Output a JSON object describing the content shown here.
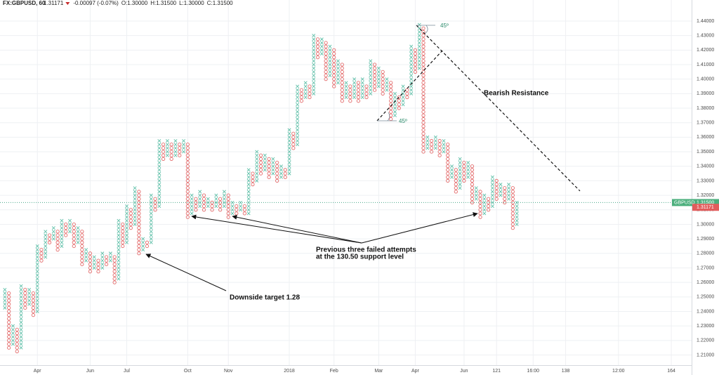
{
  "chart_data": {
    "type": "point-and-figure",
    "title": "FX:GBPUSD, 60",
    "header_values": [
      "1.31171",
      "-0.00097 (-0.07%)",
      "O:1.30000",
      "H:1.31500",
      "L:1.30000",
      "C:1.31500"
    ],
    "box_size": 0.0025,
    "x_color": "#5fbfa8",
    "o_color": "#e36b6b",
    "grid": true,
    "xlim": [
      -0.5,
      169
    ],
    "ylim": [
      1.203,
      1.4545
    ],
    "xticks": [
      {
        "value": 8,
        "label": "Apr"
      },
      {
        "value": 21,
        "label": "Jun"
      },
      {
        "value": 30,
        "label": "Jul"
      },
      {
        "value": 45,
        "label": "Oct"
      },
      {
        "value": 55,
        "label": "Nov"
      },
      {
        "value": 70,
        "label": "2018"
      },
      {
        "value": 81,
        "label": "Feb"
      },
      {
        "value": 92,
        "label": "Mar"
      },
      {
        "value": 101,
        "label": "Apr"
      },
      {
        "value": 113,
        "label": "Jun"
      },
      121,
      {
        "value": 130,
        "label": "16:00"
      },
      138,
      {
        "value": 151,
        "label": "12:00"
      },
      164
    ],
    "yticks": [
      {
        "value": 1.21,
        "label": "1.21000"
      },
      {
        "value": 1.22,
        "label": "1.22000"
      },
      {
        "value": 1.23,
        "label": "1.23000"
      },
      {
        "value": 1.24,
        "label": "1.24000"
      },
      {
        "value": 1.25,
        "label": "1.25000"
      },
      {
        "value": 1.26,
        "label": "1.26000"
      },
      {
        "value": 1.27,
        "label": "1.27000"
      },
      {
        "value": 1.28,
        "label": "1.28000"
      },
      {
        "value": 1.29,
        "label": "1.29000"
      },
      {
        "value": 1.3,
        "label": "1.30000"
      },
      {
        "value": 1.31,
        "label": "1.31000"
      },
      {
        "value": 1.32,
        "label": "1.32000"
      },
      {
        "value": 1.33,
        "label": "1.33000"
      },
      {
        "value": 1.34,
        "label": "1.34000"
      },
      {
        "value": 1.35,
        "label": "1.35000"
      },
      {
        "value": 1.36,
        "label": "1.36000"
      },
      {
        "value": 1.37,
        "label": "1.37000"
      },
      {
        "value": 1.38,
        "label": "1.38000"
      },
      {
        "value": 1.39,
        "label": "1.39000"
      },
      {
        "value": 1.4,
        "label": "1.40000"
      },
      {
        "value": 1.41,
        "label": "1.41000"
      },
      {
        "value": 1.42,
        "label": "1.42000"
      },
      {
        "value": 1.43,
        "label": "1.43000"
      },
      {
        "value": 1.44,
        "label": "1.44000"
      }
    ],
    "last_price": {
      "symbol": "GBPUSD",
      "value": 1.315,
      "label": "1.31500"
    },
    "close_price": {
      "value": 1.31171,
      "label": "1.31171"
    },
    "annotations": [
      "Bearish Resistance",
      "Previous three failed attempts",
      "at the 130.50 support level",
      "Downside target 1.28",
      "45º",
      "45º"
    ],
    "columns": [
      {
        "box": "X",
        "low": 1.2425,
        "high": 1.255
      },
      {
        "box": "O",
        "low": 1.215,
        "high": 1.2525
      },
      {
        "box": "X",
        "low": 1.2175,
        "high": 1.23
      },
      {
        "box": "O",
        "low": 1.2125,
        "high": 1.2275
      },
      {
        "box": "X",
        "low": 1.215,
        "high": 1.2575
      },
      {
        "box": "O",
        "low": 1.2425,
        "high": 1.255
      },
      {
        "box": "X",
        "low": 1.245,
        "high": 1.255
      },
      {
        "box": "O",
        "low": 1.2375,
        "high": 1.2525
      },
      {
        "box": "X",
        "low": 1.24,
        "high": 1.285
      },
      {
        "box": "O",
        "low": 1.275,
        "high": 1.2825
      },
      {
        "box": "X",
        "low": 1.2775,
        "high": 1.295
      },
      {
        "box": "O",
        "low": 1.2875,
        "high": 1.2925
      },
      {
        "box": "X",
        "low": 1.29,
        "high": 1.2975
      },
      {
        "box": "O",
        "low": 1.2825,
        "high": 1.295
      },
      {
        "box": "X",
        "low": 1.285,
        "high": 1.3025
      },
      {
        "box": "O",
        "low": 1.2925,
        "high": 1.3
      },
      {
        "box": "X",
        "low": 1.295,
        "high": 1.3025
      },
      {
        "box": "O",
        "low": 1.285,
        "high": 1.3
      },
      {
        "box": "X",
        "low": 1.2875,
        "high": 1.2975
      },
      {
        "box": "O",
        "low": 1.2725,
        "high": 1.295
      },
      {
        "box": "X",
        "low": 1.275,
        "high": 1.2825
      },
      {
        "box": "O",
        "low": 1.2675,
        "high": 1.28
      },
      {
        "box": "X",
        "low": 1.27,
        "high": 1.2775
      },
      {
        "box": "O",
        "low": 1.2675,
        "high": 1.275
      },
      {
        "box": "X",
        "low": 1.27,
        "high": 1.28
      },
      {
        "box": "O",
        "low": 1.2725,
        "high": 1.2775
      },
      {
        "box": "X",
        "low": 1.275,
        "high": 1.28
      },
      {
        "box": "O",
        "low": 1.26,
        "high": 1.2775
      },
      {
        "box": "X",
        "low": 1.2625,
        "high": 1.3025
      },
      {
        "box": "O",
        "low": 1.285,
        "high": 1.3
      },
      {
        "box": "X",
        "low": 1.2875,
        "high": 1.3125
      },
      {
        "box": "O",
        "low": 1.2975,
        "high": 1.31
      },
      {
        "box": "X",
        "low": 1.3,
        "high": 1.325
      },
      {
        "box": "O",
        "low": 1.28,
        "high": 1.3225
      },
      {
        "box": "X",
        "low": 1.2825,
        "high": 1.29
      },
      {
        "box": "O",
        "low": 1.285,
        "high": 1.2875
      },
      {
        "box": "X",
        "low": 1.2875,
        "high": 1.32
      },
      {
        "box": "O",
        "low": 1.31,
        "high": 1.3175
      },
      {
        "box": "X",
        "low": 1.3125,
        "high": 1.3575
      },
      {
        "box": "O",
        "low": 1.345,
        "high": 1.355
      },
      {
        "box": "X",
        "low": 1.3475,
        "high": 1.3575
      },
      {
        "box": "O",
        "low": 1.345,
        "high": 1.355
      },
      {
        "box": "X",
        "low": 1.3475,
        "high": 1.3575
      },
      {
        "box": "O",
        "low": 1.3475,
        "high": 1.355
      },
      {
        "box": "X",
        "low": 1.35,
        "high": 1.3575
      },
      {
        "box": "O",
        "low": 1.305,
        "high": 1.355
      },
      {
        "box": "X",
        "low": 1.3075,
        "high": 1.32
      },
      {
        "box": "O",
        "low": 1.31,
        "high": 1.3175
      },
      {
        "box": "X",
        "low": 1.3125,
        "high": 1.3225
      },
      {
        "box": "O",
        "low": 1.31,
        "high": 1.32
      },
      {
        "box": "X",
        "low": 1.3125,
        "high": 1.3175
      },
      {
        "box": "O",
        "low": 1.31,
        "high": 1.315
      },
      {
        "box": "X",
        "low": 1.3125,
        "high": 1.32
      },
      {
        "box": "O",
        "low": 1.31,
        "high": 1.3175
      },
      {
        "box": "X",
        "low": 1.3125,
        "high": 1.3225
      },
      {
        "box": "O",
        "low": 1.305,
        "high": 1.32
      },
      {
        "box": "X",
        "low": 1.3075,
        "high": 1.315
      },
      {
        "box": "O",
        "low": 1.3075,
        "high": 1.3125
      },
      {
        "box": "X",
        "low": 1.31,
        "high": 1.315
      },
      {
        "box": "O",
        "low": 1.3075,
        "high": 1.3125
      },
      {
        "box": "X",
        "low": 1.3075,
        "high": 1.3375
      },
      {
        "box": "O",
        "low": 1.3275,
        "high": 1.335
      },
      {
        "box": "X",
        "low": 1.33,
        "high": 1.35
      },
      {
        "box": "O",
        "low": 1.335,
        "high": 1.3475
      },
      {
        "box": "X",
        "low": 1.3375,
        "high": 1.3475
      },
      {
        "box": "O",
        "low": 1.3325,
        "high": 1.345
      },
      {
        "box": "X",
        "low": 1.335,
        "high": 1.345
      },
      {
        "box": "O",
        "low": 1.33,
        "high": 1.3425
      },
      {
        "box": "X",
        "low": 1.3325,
        "high": 1.34
      },
      {
        "box": "O",
        "low": 1.3325,
        "high": 1.3375
      },
      {
        "box": "X",
        "low": 1.335,
        "high": 1.365
      },
      {
        "box": "O",
        "low": 1.3525,
        "high": 1.3625
      },
      {
        "box": "X",
        "low": 1.355,
        "high": 1.395
      },
      {
        "box": "O",
        "low": 1.385,
        "high": 1.3925
      },
      {
        "box": "X",
        "low": 1.3875,
        "high": 1.3975
      },
      {
        "box": "O",
        "low": 1.3875,
        "high": 1.395
      },
      {
        "box": "X",
        "low": 1.39,
        "high": 1.43
      },
      {
        "box": "O",
        "low": 1.415,
        "high": 1.4275
      },
      {
        "box": "X",
        "low": 1.4175,
        "high": 1.4275
      },
      {
        "box": "O",
        "low": 1.4,
        "high": 1.425
      },
      {
        "box": "X",
        "low": 1.4025,
        "high": 1.4225
      },
      {
        "box": "O",
        "low": 1.395,
        "high": 1.42
      },
      {
        "box": "X",
        "low": 1.3975,
        "high": 1.4125
      },
      {
        "box": "O",
        "low": 1.385,
        "high": 1.41
      },
      {
        "box": "X",
        "low": 1.3875,
        "high": 1.3975
      },
      {
        "box": "O",
        "low": 1.385,
        "high": 1.395
      },
      {
        "box": "X",
        "low": 1.3875,
        "high": 1.4
      },
      {
        "box": "O",
        "low": 1.385,
        "high": 1.3975
      },
      {
        "box": "X",
        "low": 1.3875,
        "high": 1.4
      },
      {
        "box": "O",
        "low": 1.3875,
        "high": 1.395
      },
      {
        "box": "X",
        "low": 1.39,
        "high": 1.4125
      },
      {
        "box": "O",
        "low": 1.3925,
        "high": 1.41
      },
      {
        "box": "X",
        "low": 1.395,
        "high": 1.4075
      },
      {
        "box": "O",
        "low": 1.39,
        "high": 1.405
      },
      {
        "box": "X",
        "low": 1.3925,
        "high": 1.4
      },
      {
        "box": "O",
        "low": 1.3725,
        "high": 1.3975
      },
      {
        "box": "X",
        "low": 1.375,
        "high": 1.39
      },
      {
        "box": "O",
        "low": 1.38,
        "high": 1.3875
      },
      {
        "box": "X",
        "low": 1.3825,
        "high": 1.395
      },
      {
        "box": "O",
        "low": 1.3875,
        "high": 1.3925
      },
      {
        "box": "X",
        "low": 1.39,
        "high": 1.4225
      },
      {
        "box": "O",
        "low": 1.405,
        "high": 1.42
      },
      {
        "box": "X",
        "low": 1.4075,
        "high": 1.4375
      },
      {
        "box": "O",
        "low": 1.35,
        "high": 1.435
      },
      {
        "box": "X",
        "low": 1.3525,
        "high": 1.36
      },
      {
        "box": "O",
        "low": 1.35,
        "high": 1.3575
      },
      {
        "box": "X",
        "low": 1.3525,
        "high": 1.36
      },
      {
        "box": "O",
        "low": 1.3475,
        "high": 1.3575
      },
      {
        "box": "X",
        "low": 1.35,
        "high": 1.3575
      },
      {
        "box": "O",
        "low": 1.33,
        "high": 1.355
      },
      {
        "box": "X",
        "low": 1.3325,
        "high": 1.34
      },
      {
        "box": "O",
        "low": 1.3225,
        "high": 1.3375
      },
      {
        "box": "X",
        "low": 1.325,
        "high": 1.345
      },
      {
        "box": "O",
        "low": 1.33,
        "high": 1.3425
      },
      {
        "box": "X",
        "low": 1.3325,
        "high": 1.3425
      },
      {
        "box": "O",
        "low": 1.315,
        "high": 1.34
      },
      {
        "box": "X",
        "low": 1.3175,
        "high": 1.325
      },
      {
        "box": "O",
        "low": 1.305,
        "high": 1.3225
      },
      {
        "box": "X",
        "low": 1.3075,
        "high": 1.32
      },
      {
        "box": "O",
        "low": 1.31,
        "high": 1.3175
      },
      {
        "box": "X",
        "low": 1.3125,
        "high": 1.3325
      },
      {
        "box": "O",
        "low": 1.3175,
        "high": 1.33
      },
      {
        "box": "X",
        "low": 1.32,
        "high": 1.3275
      },
      {
        "box": "O",
        "low": 1.315,
        "high": 1.325
      },
      {
        "box": "X",
        "low": 1.3175,
        "high": 1.3275
      },
      {
        "box": "O",
        "low": 1.2975,
        "high": 1.325
      },
      {
        "box": "X",
        "low": 1.3,
        "high": 1.315
      }
    ]
  }
}
